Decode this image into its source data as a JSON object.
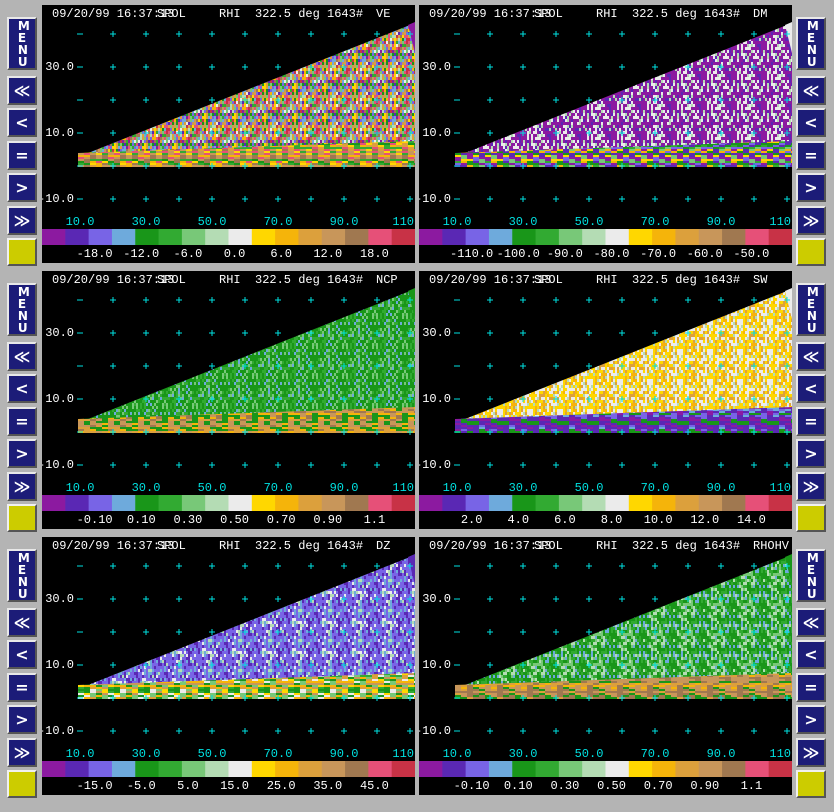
{
  "buttons": {
    "menu": "MENU",
    "items": [
      "≪",
      "<",
      "=",
      ">",
      "≫"
    ]
  },
  "y_axis_labels": [
    "30.0",
    "10.0",
    "-10.0"
  ],
  "x_axis_labels": [
    "10.0",
    "30.0",
    "50.0",
    "70.0",
    "90.0",
    "110"
  ],
  "colorbar_colors": [
    "#8c1aa0",
    "#5a28b4",
    "#7864e6",
    "#6eaadc",
    "#199619",
    "#32aa32",
    "#78c878",
    "#b4dcb4",
    "#ebebeb",
    "#ffd700",
    "#f5b40a",
    "#dca03c",
    "#c8965a",
    "#a07850",
    "#e65078",
    "#c83246"
  ],
  "panels": [
    {
      "date_time": "09/20/99 16:37:13",
      "radar": "SPOL",
      "scan": "RHI  322.5 deg 1643#",
      "field": "VE",
      "colorbar_labels": [
        "-18.0",
        "-12.0",
        "-6.0",
        "0.0",
        "6.0",
        "12.0",
        "18.0"
      ]
    },
    {
      "date_time": "09/20/99 16:37:13",
      "radar": "SPOL",
      "scan": "RHI  322.5 deg 1643#",
      "field": "DM",
      "colorbar_labels": [
        "-110.0",
        "-100.0",
        "-90.0",
        "-80.0",
        "-70.0",
        "-60.0",
        "-50.0"
      ]
    },
    {
      "date_time": "09/20/99 16:37:13",
      "radar": "SPOL",
      "scan": "RHI  322.5 deg 1643#",
      "field": "NCP",
      "colorbar_labels": [
        "-0.10",
        "0.10",
        "0.30",
        "0.50",
        "0.70",
        "0.90",
        "1.1"
      ]
    },
    {
      "date_time": "09/20/99 16:37:13",
      "radar": "SPOL",
      "scan": "RHI  322.5 deg 1643#",
      "field": "SW",
      "colorbar_labels": [
        "2.0",
        "4.0",
        "6.0",
        "8.0",
        "10.0",
        "12.0",
        "14.0"
      ]
    },
    {
      "date_time": "09/20/99 16:37:13",
      "radar": "SPOL",
      "scan": "RHI  322.5 deg 1643#",
      "field": "DZ",
      "colorbar_labels": [
        "-15.0",
        "-5.0",
        "5.0",
        "15.0",
        "25.0",
        "35.0",
        "45.0"
      ]
    },
    {
      "date_time": "09/20/99 16:37:13",
      "radar": "SPOL",
      "scan": "RHI  322.5 deg 1643#",
      "field": "RHOHV",
      "colorbar_labels": [
        "-0.10",
        "0.10",
        "0.30",
        "0.50",
        "0.70",
        "0.90",
        "1.1"
      ]
    }
  ]
}
